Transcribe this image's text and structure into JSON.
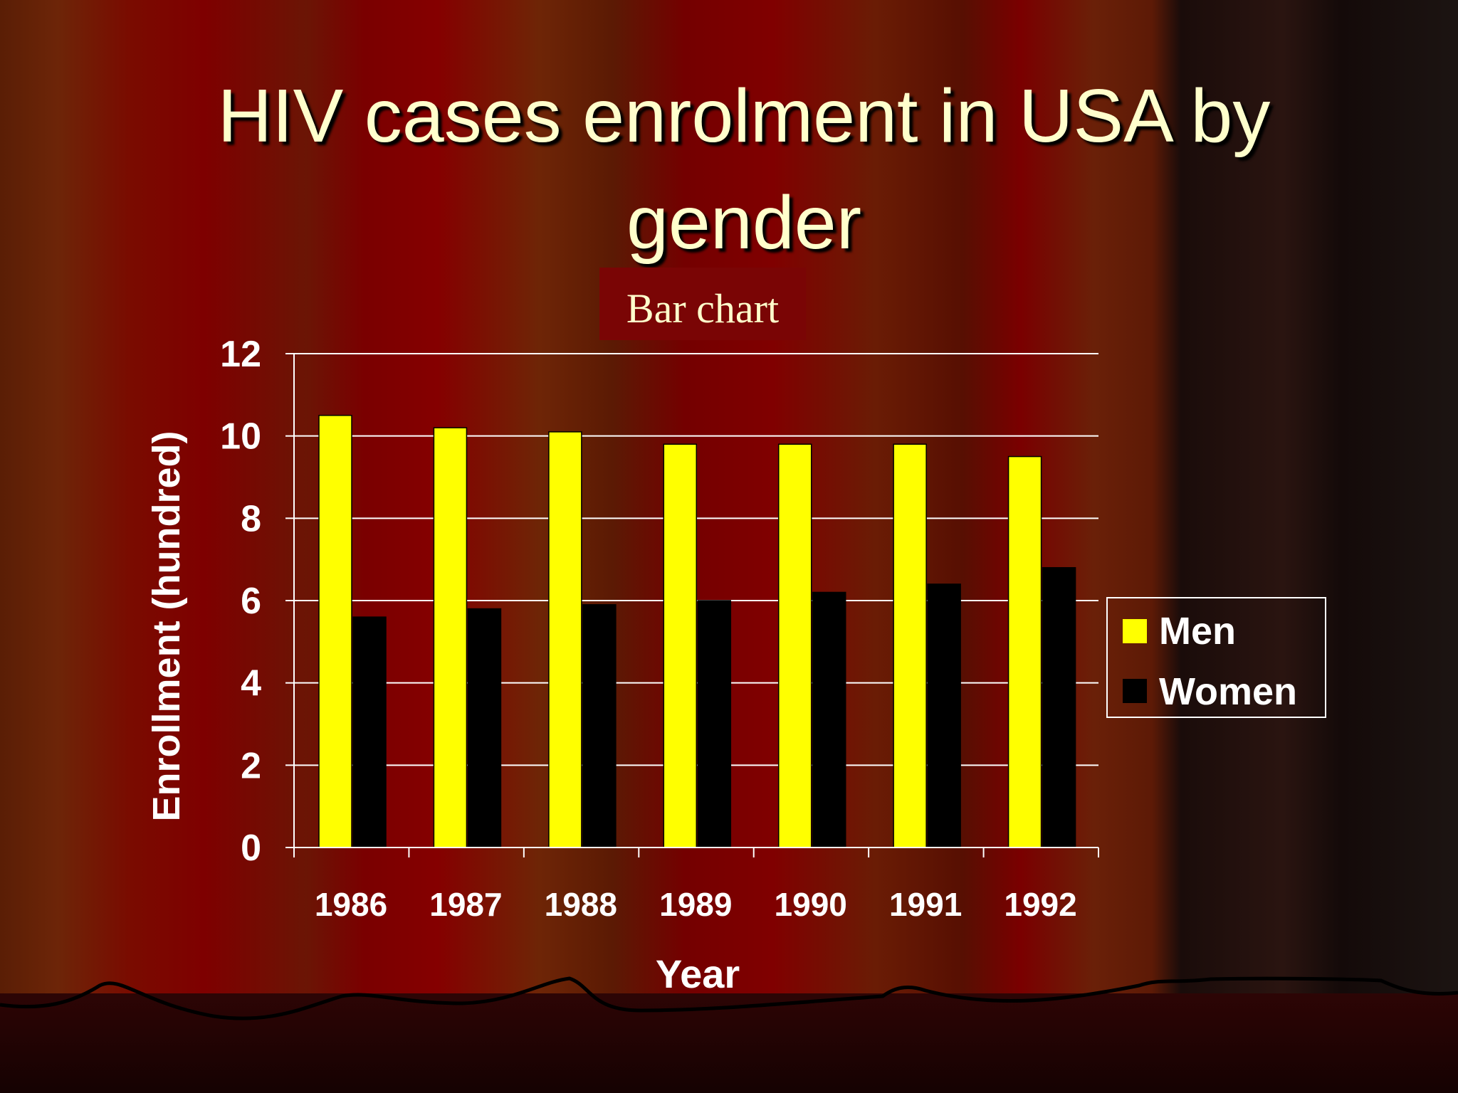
{
  "slide": {
    "title": "HIV cases enrolment in USA by gender",
    "subtitle": "Bar chart"
  },
  "colors": {
    "men": "#ffff00",
    "women": "#000000",
    "axis": "#ffffff",
    "text": "#ffffff"
  },
  "chart_data": {
    "type": "bar",
    "title": "Bar chart",
    "xlabel": "Year",
    "ylabel": "Enrollment (hundred)",
    "categories": [
      "1986",
      "1987",
      "1988",
      "1989",
      "1990",
      "1991",
      "1992"
    ],
    "series": [
      {
        "name": "Men",
        "values": [
          10.5,
          10.2,
          10.1,
          9.8,
          9.8,
          9.8,
          9.5
        ]
      },
      {
        "name": "Women",
        "values": [
          5.6,
          5.8,
          5.9,
          6.0,
          6.2,
          6.4,
          6.8
        ]
      }
    ],
    "ylim": [
      0,
      12
    ],
    "yticks": [
      0,
      2,
      4,
      6,
      8,
      10,
      12
    ],
    "grid": true,
    "legend": "right"
  }
}
